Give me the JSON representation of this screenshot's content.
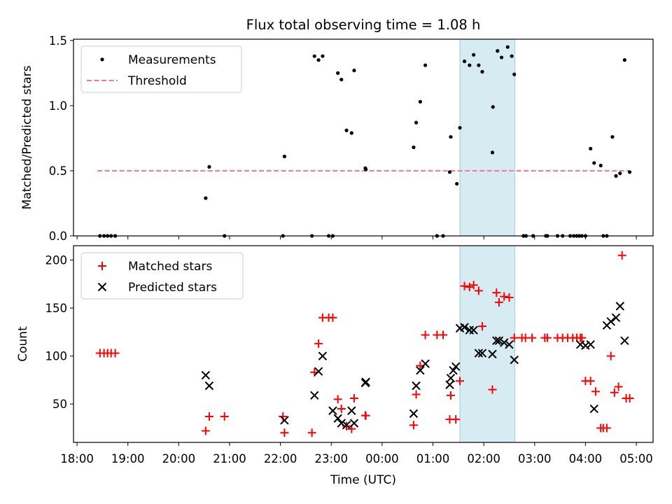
{
  "figure_title": "Flux total observing time = 1.08 h",
  "xlabel": "Time (UTC)",
  "colors": {
    "measure": "#000000",
    "threshold": "#f08080",
    "matched": "#ff0000",
    "predicted": "#000000",
    "highlight": "#add8e6"
  },
  "chart_data": [
    {
      "type": "scatter",
      "title": "Flux total observing time = 1.08 h",
      "ylabel": "Matched/Predicted stars",
      "xlabel": "",
      "xlim_hours": [
        17.93,
        29.33
      ],
      "ylim": [
        0,
        1.51
      ],
      "yticks": [
        0,
        0.5,
        1,
        1.5
      ],
      "ytick_labels": [
        "0.0",
        "0.5",
        "1.0",
        "1.5"
      ],
      "highlight_span_hours": [
        25.53,
        26.61
      ],
      "threshold": {
        "value": 0.5,
        "x_range_hours": [
          18.4,
          28.87
        ]
      },
      "legend": {
        "position": "upper-left",
        "entries": [
          "Measurements",
          "Threshold"
        ]
      },
      "series": [
        {
          "name": "Measurements",
          "x_hours": [
            18.45,
            18.53,
            18.6,
            18.67,
            18.75,
            20.53,
            20.6,
            20.9,
            22.05,
            22.08,
            22.62,
            22.67,
            22.75,
            22.83,
            22.95,
            23.03,
            23.13,
            23.2,
            23.3,
            23.4,
            23.45,
            23.67,
            23.68,
            24.62,
            24.67,
            24.75,
            24.85,
            25.08,
            25.2,
            25.33,
            25.35,
            25.47,
            25.53,
            25.62,
            25.72,
            25.8,
            25.9,
            25.97,
            26.17,
            26.18,
            26.27,
            26.35,
            26.47,
            26.55,
            26.6,
            26.78,
            26.83,
            26.97,
            27.22,
            27.25,
            27.45,
            27.55,
            27.7,
            27.77,
            27.83,
            27.88,
            27.93,
            28.0,
            28.1,
            28.17,
            28.3,
            28.35,
            28.42,
            28.53,
            28.6,
            28.68,
            28.77,
            28.87
          ],
          "y": [
            0,
            0,
            0,
            0,
            0,
            0.29,
            0.53,
            0,
            0,
            0.61,
            0,
            1.38,
            1.35,
            1.38,
            0,
            0,
            1.25,
            1.2,
            0.81,
            0.79,
            1.27,
            0.52,
            0.51,
            0.68,
            0.87,
            1.03,
            1.31,
            0,
            0,
            0.49,
            0.76,
            0.4,
            0.83,
            1.34,
            1.31,
            1.39,
            1.31,
            1.26,
            0.64,
            0.99,
            1.42,
            1.37,
            1.45,
            1.38,
            1.24,
            0,
            0,
            0,
            0,
            0,
            0,
            0,
            0,
            0,
            0,
            0,
            0,
            0,
            0.67,
            0.56,
            0.54,
            0,
            0,
            0.76,
            0.46,
            0.48,
            1.35,
            0.49
          ]
        }
      ]
    },
    {
      "type": "scatter",
      "title": "",
      "ylabel": "Count",
      "xlabel": "Time (UTC)",
      "xlim_hours": [
        17.93,
        29.33
      ],
      "ylim": [
        10,
        215
      ],
      "yticks": [
        50,
        100,
        150,
        200
      ],
      "ytick_labels": [
        "50",
        "100",
        "150",
        "200"
      ],
      "xticks_hours": [
        18,
        19,
        20,
        21,
        22,
        23,
        24,
        25,
        26,
        27,
        28,
        29
      ],
      "xtick_labels": [
        "18:00",
        "19:00",
        "20:00",
        "21:00",
        "22:00",
        "23:00",
        "00:00",
        "01:00",
        "02:00",
        "03:00",
        "04:00",
        "05:00"
      ],
      "highlight_span_hours": [
        25.53,
        26.61
      ],
      "legend": {
        "position": "upper-left",
        "entries": [
          "Matched stars",
          "Predicted stars"
        ]
      },
      "series": [
        {
          "name": "Matched stars",
          "marker": "plus",
          "x_hours": [
            18.45,
            18.53,
            18.6,
            18.67,
            18.75,
            20.53,
            20.6,
            20.9,
            22.05,
            22.08,
            22.62,
            22.67,
            22.75,
            22.83,
            22.95,
            23.03,
            23.13,
            23.2,
            23.3,
            23.4,
            23.45,
            23.67,
            23.68,
            24.62,
            24.67,
            24.75,
            24.85,
            25.08,
            25.2,
            25.33,
            25.35,
            25.45,
            25.53,
            25.62,
            25.72,
            25.8,
            25.9,
            25.97,
            26.17,
            26.25,
            26.3,
            26.4,
            26.5,
            26.6,
            26.75,
            26.82,
            26.95,
            27.2,
            27.25,
            27.45,
            27.55,
            27.65,
            27.75,
            27.83,
            27.9,
            27.93,
            28.0,
            28.1,
            28.2,
            28.3,
            28.35,
            28.42,
            28.5,
            28.57,
            28.65,
            28.72,
            28.8,
            28.87
          ],
          "y": [
            103,
            103,
            103,
            103,
            103,
            22,
            37,
            37,
            37,
            20,
            20,
            83,
            113,
            140,
            140,
            140,
            55,
            45,
            27,
            24,
            56,
            38,
            38,
            28,
            60,
            90,
            122,
            122,
            122,
            34,
            59,
            34,
            74,
            173,
            172,
            174,
            168,
            131,
            65,
            166,
            156,
            162,
            161,
            119,
            119,
            119,
            119,
            119,
            119,
            119,
            119,
            119,
            119,
            119,
            119,
            119,
            74,
            74,
            63,
            25,
            25,
            25,
            100,
            62,
            68,
            205,
            56,
            56
          ]
        },
        {
          "name": "Predicted stars",
          "marker": "x",
          "x_hours": [
            20.53,
            20.6,
            22.08,
            22.67,
            22.75,
            22.83,
            23.03,
            23.13,
            23.2,
            23.3,
            23.4,
            23.45,
            23.67,
            23.68,
            24.62,
            24.67,
            24.75,
            24.85,
            25.33,
            25.35,
            25.4,
            25.45,
            25.53,
            25.62,
            25.72,
            25.8,
            25.9,
            25.97,
            26.17,
            26.25,
            26.3,
            26.4,
            26.5,
            26.6,
            27.9,
            28.0,
            28.1,
            28.17,
            28.42,
            28.5,
            28.6,
            28.68,
            28.77
          ],
          "y": [
            80,
            69,
            33,
            59,
            84,
            100,
            43,
            35,
            30,
            28,
            43,
            30,
            72,
            73,
            40,
            69,
            85,
            92,
            70,
            77,
            85,
            89,
            129,
            130,
            127,
            127,
            103,
            103,
            102,
            116,
            116,
            114,
            112,
            96,
            112,
            111,
            112,
            45,
            132,
            136,
            140,
            152,
            116
          ]
        }
      ]
    }
  ]
}
